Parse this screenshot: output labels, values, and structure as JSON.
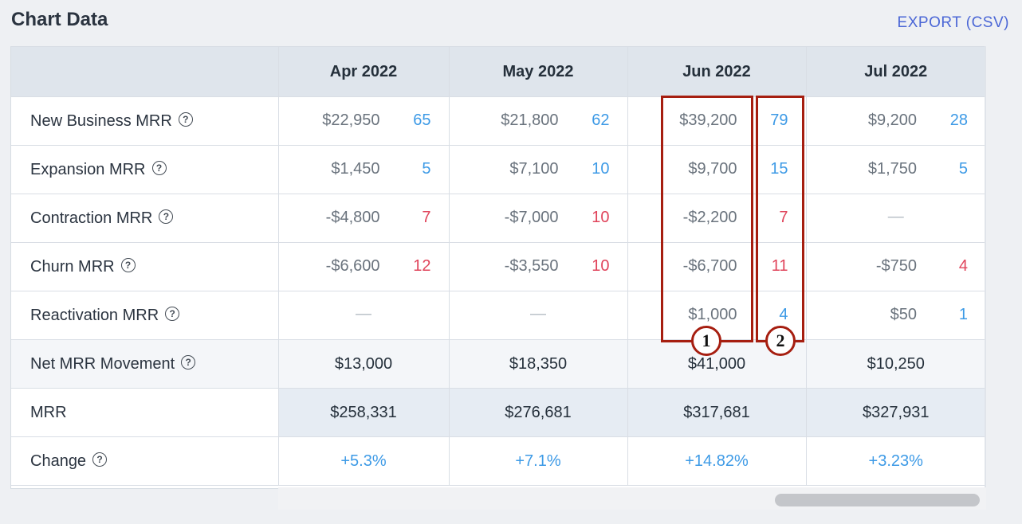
{
  "header": {
    "title": "Chart Data",
    "export_label": "EXPORT (CSV)"
  },
  "columns": [
    "Apr 2022",
    "May 2022",
    "Jun 2022",
    "Jul 2022"
  ],
  "rows": [
    {
      "label": "New Business MRR",
      "help": "?",
      "cells": [
        {
          "amount": "$22,950",
          "count": "65",
          "tone": "pos"
        },
        {
          "amount": "$21,800",
          "count": "62",
          "tone": "pos"
        },
        {
          "amount": "$39,200",
          "count": "79",
          "tone": "pos"
        },
        {
          "amount": "$9,200",
          "count": "28",
          "tone": "pos"
        }
      ]
    },
    {
      "label": "Expansion MRR",
      "help": "?",
      "cells": [
        {
          "amount": "$1,450",
          "count": "5",
          "tone": "pos"
        },
        {
          "amount": "$7,100",
          "count": "10",
          "tone": "pos"
        },
        {
          "amount": "$9,700",
          "count": "15",
          "tone": "pos"
        },
        {
          "amount": "$1,750",
          "count": "5",
          "tone": "pos"
        }
      ]
    },
    {
      "label": "Contraction MRR",
      "help": "?",
      "cells": [
        {
          "amount": "-$4,800",
          "count": "7",
          "tone": "neg"
        },
        {
          "amount": "-$7,000",
          "count": "10",
          "tone": "neg"
        },
        {
          "amount": "-$2,200",
          "count": "7",
          "tone": "neg"
        },
        {
          "dash": "—"
        }
      ]
    },
    {
      "label": "Churn MRR",
      "help": "?",
      "cells": [
        {
          "amount": "-$6,600",
          "count": "12",
          "tone": "neg"
        },
        {
          "amount": "-$3,550",
          "count": "10",
          "tone": "neg"
        },
        {
          "amount": "-$6,700",
          "count": "11",
          "tone": "neg"
        },
        {
          "amount": "-$750",
          "count": "4",
          "tone": "neg"
        }
      ]
    },
    {
      "label": "Reactivation MRR",
      "help": "?",
      "cells": [
        {
          "dash": "—"
        },
        {
          "dash": "—"
        },
        {
          "amount": "$1,000",
          "count": "4",
          "tone": "pos"
        },
        {
          "amount": "$50",
          "count": "1",
          "tone": "pos"
        }
      ]
    }
  ],
  "net": {
    "label": "Net MRR Movement",
    "help": "?",
    "values": [
      "$13,000",
      "$18,350",
      "$41,000",
      "$10,250"
    ]
  },
  "mrr": {
    "label": "MRR",
    "values": [
      "$258,331",
      "$276,681",
      "$317,681",
      "$327,931"
    ]
  },
  "change": {
    "label": "Change",
    "help": "?",
    "values": [
      "+5.3%",
      "+7.1%",
      "+14.82%",
      "+3.23%"
    ]
  },
  "annotations": [
    "1",
    "2"
  ],
  "colors": {
    "positive": "#3d9ae6",
    "negative": "#e0445b",
    "export": "#4a66d6",
    "highlight": "#a61e10"
  }
}
